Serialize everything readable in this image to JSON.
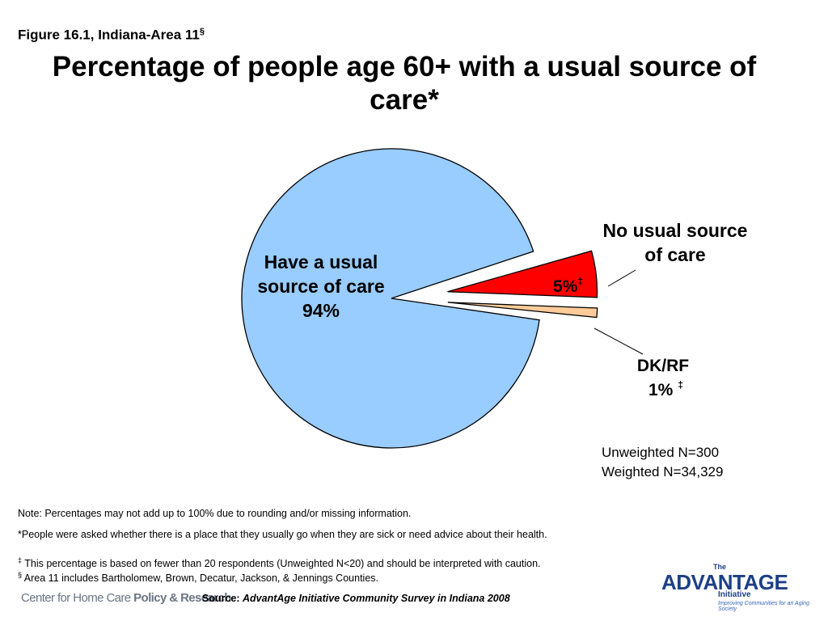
{
  "figure_label": "Figure 16.1, Indiana-Area 11",
  "figure_label_mark": "§",
  "chart_data": {
    "type": "pie",
    "title": "Percentage of people age 60+ with a usual source of care*",
    "slices": [
      {
        "name": "Have a usual source of care",
        "value": 94,
        "label": "94%",
        "color": "#99ccff",
        "exploded": false
      },
      {
        "name": "No usual source of care",
        "value": 5,
        "label": "5%",
        "mark": "‡",
        "color": "#ff0000",
        "exploded": true
      },
      {
        "name": "DK/RF",
        "value": 1,
        "label": "1%",
        "mark": "‡",
        "color": "#ffcc99",
        "exploded": true
      }
    ]
  },
  "sample_size": {
    "unweighted": "Unweighted N=300",
    "weighted": "Weighted N=34,329"
  },
  "notes": {
    "note1": "Note: Percentages may not add up to 100% due to rounding and/or missing information.",
    "note2": "*People were asked whether there is a place that they usually go when they are sick or need advice about their health.",
    "note3_mark": "‡",
    "note3": " This percentage is based on fewer than 20 respondents (Unweighted N<20) and should be interpreted with caution.",
    "note4_mark": "§",
    "note4": " Area 11 includes Bartholomew, Brown, Decatur, Jackson, & Jennings Counties."
  },
  "source": {
    "prefix": "Source: ",
    "title": "AdvantAge Initiative Community Survey in Indiana 2008"
  },
  "logos": {
    "chhc_part1": "Center for Home Care ",
    "chhc_part2": "Policy & Research",
    "advantage_the": "The",
    "advantage_word": "ADVANTAGE",
    "advantage_initiative": "Initiative",
    "advantage_tagline": "Improving Communities for an Aging Society"
  }
}
